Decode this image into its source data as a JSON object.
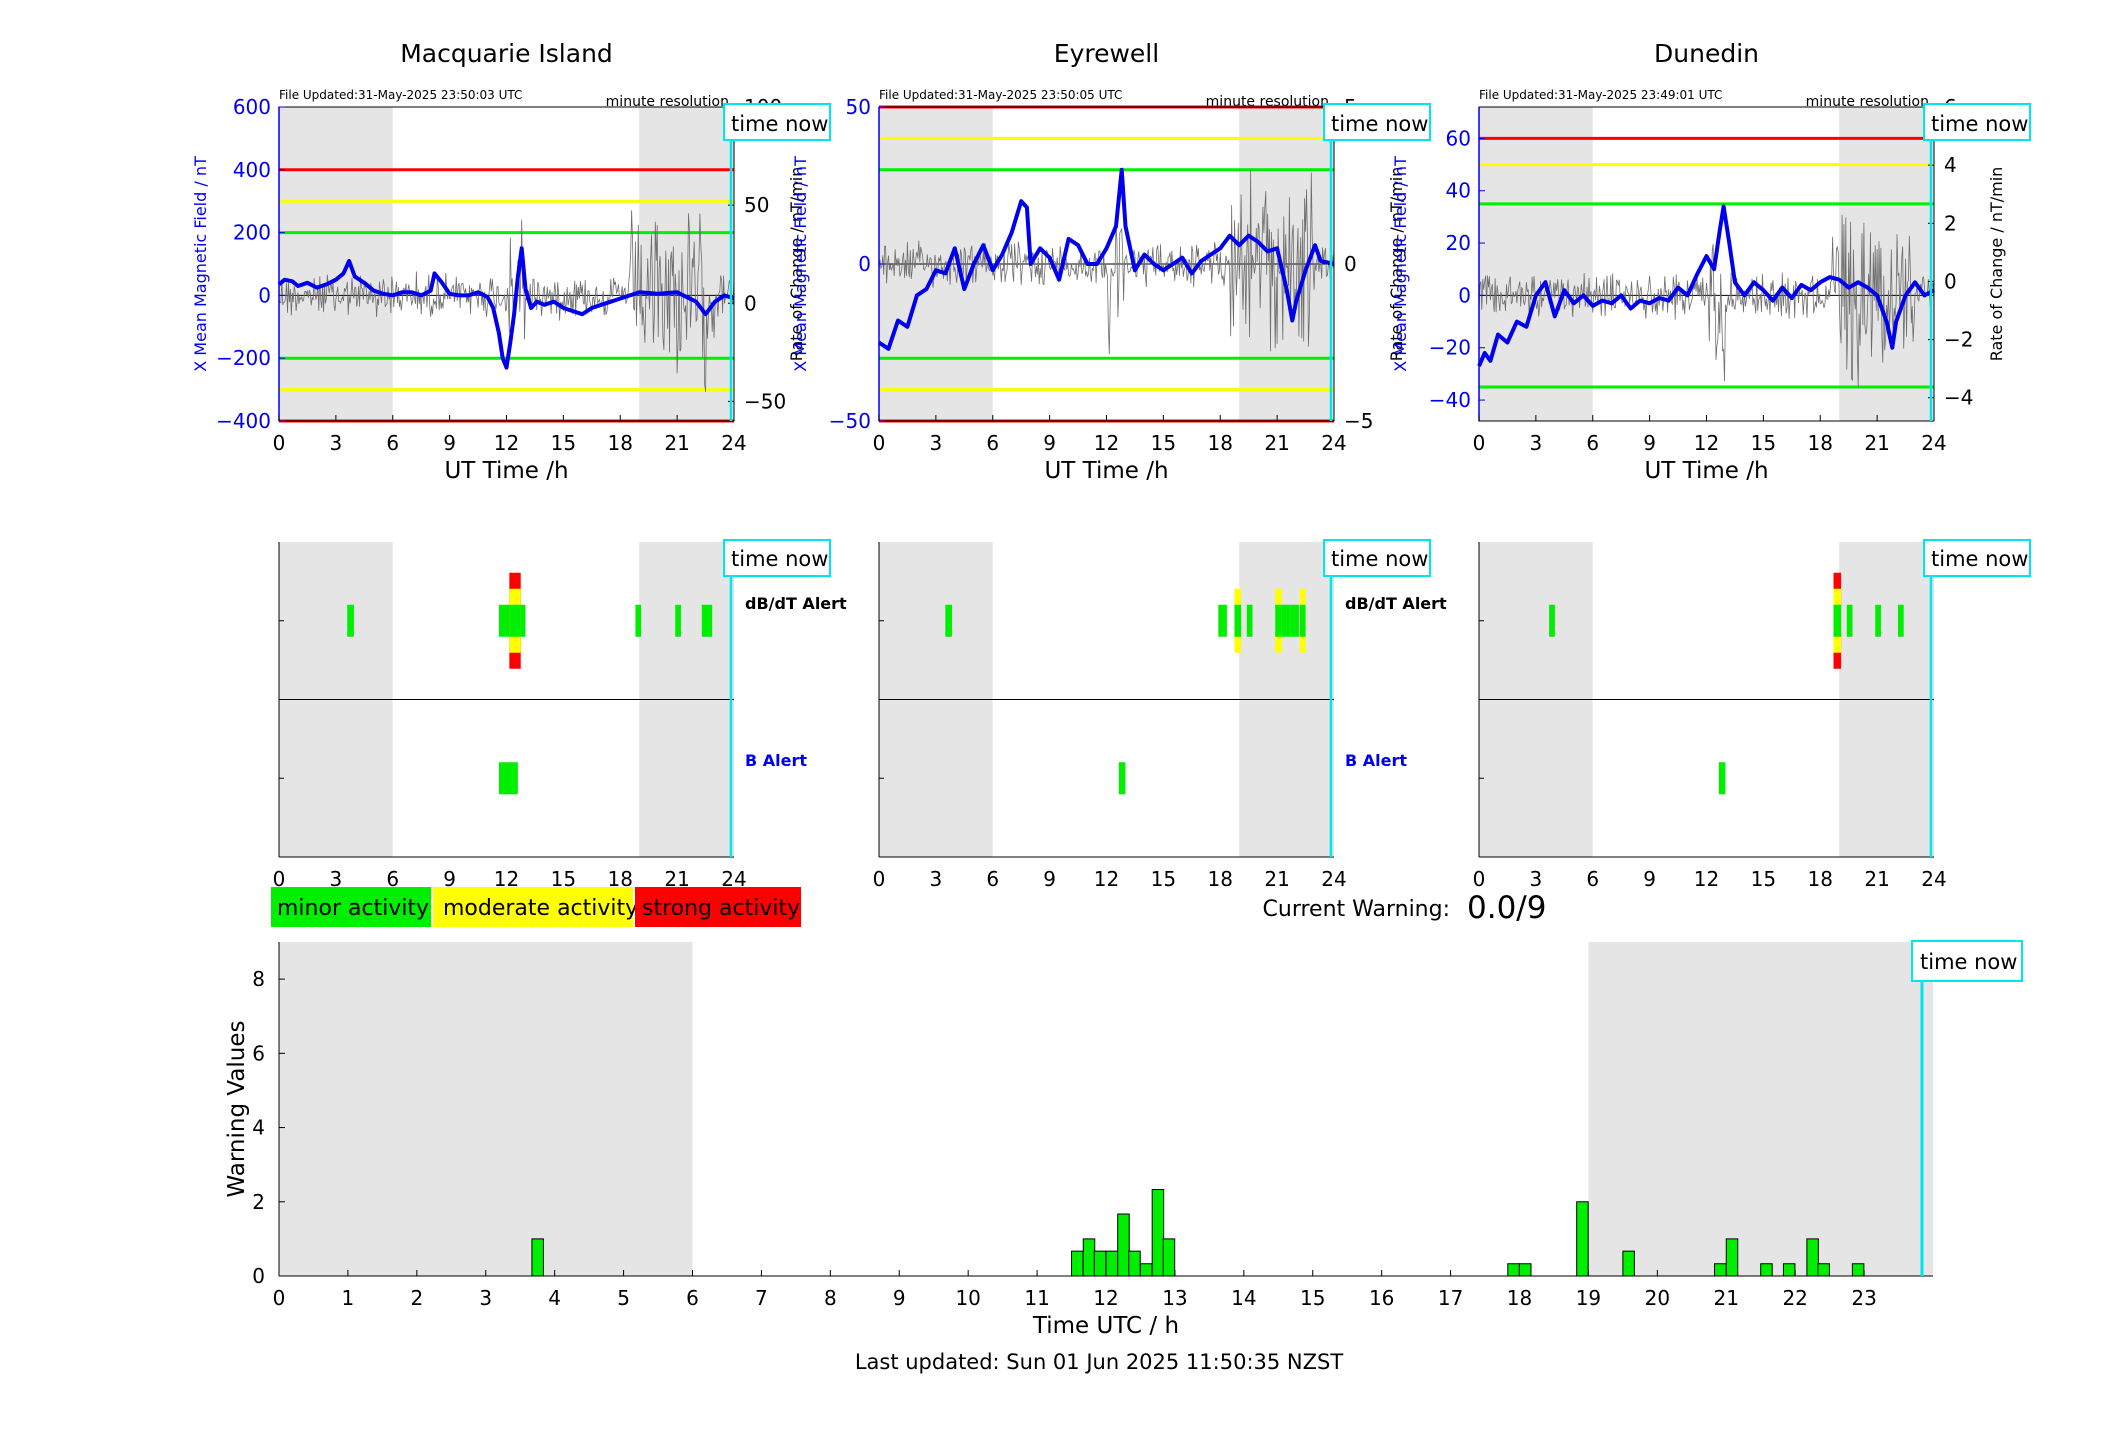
{
  "xlabel_ut": "UT Time /h",
  "minute_resolution": "minute resolution",
  "time_now_label": "time now",
  "legend": {
    "minor": "minor activity",
    "moderate": "moderate activity",
    "strong": "strong activity"
  },
  "alert_labels": {
    "dbdt": "dB/dT Alert",
    "b": "B Alert"
  },
  "current_warning": {
    "label": "Current Warning:",
    "value": "0.0/9"
  },
  "footer": "Last updated: Sun 01 Jun 2025 11:50:35 NZST",
  "colors": {
    "green": "#00ee00",
    "yellow": "#ffff00",
    "red": "#ff0000",
    "blue": "#0000ee",
    "cyan": "#00e5ee",
    "shade": "#e5e5e5"
  },
  "shaded_hours": [
    [
      0,
      6
    ],
    [
      19,
      24
    ]
  ],
  "time_now_hour": 23.84,
  "stations": [
    {
      "name": "Macquarie Island",
      "file_updated": "File Updated:31-May-2025 23:50:03 UTC",
      "left_ylabel": "X Mean Magnetic Field / nT",
      "right_ylabel": "Rate of Change / nT/min",
      "left_ylim": [
        -400,
        600
      ],
      "left_ticks": [
        -400,
        -200,
        0,
        200,
        400,
        600
      ],
      "right_ylim": [
        -60,
        100
      ],
      "right_ticks": [
        -50,
        0,
        50,
        100
      ],
      "thresholds": {
        "red": 400,
        "yellow": 300,
        "green": 200
      },
      "x_field_curve": [
        [
          0,
          35
        ],
        [
          0.3,
          50
        ],
        [
          0.7,
          45
        ],
        [
          1,
          30
        ],
        [
          1.5,
          40
        ],
        [
          2,
          25
        ],
        [
          2.5,
          35
        ],
        [
          3,
          50
        ],
        [
          3.4,
          70
        ],
        [
          3.7,
          110
        ],
        [
          4,
          60
        ],
        [
          4.5,
          40
        ],
        [
          5,
          15
        ],
        [
          5.5,
          5
        ],
        [
          6,
          0
        ],
        [
          6.5,
          10
        ],
        [
          7,
          10
        ],
        [
          7.5,
          0
        ],
        [
          8,
          15
        ],
        [
          8.2,
          70
        ],
        [
          8.6,
          40
        ],
        [
          9,
          5
        ],
        [
          9.5,
          0
        ],
        [
          10,
          0
        ],
        [
          10.5,
          10
        ],
        [
          11,
          -5
        ],
        [
          11.3,
          -40
        ],
        [
          11.6,
          -120
        ],
        [
          11.8,
          -200
        ],
        [
          12,
          -230
        ],
        [
          12.2,
          -150
        ],
        [
          12.4,
          -60
        ],
        [
          12.6,
          60
        ],
        [
          12.8,
          150
        ],
        [
          13,
          20
        ],
        [
          13.3,
          -40
        ],
        [
          13.6,
          -20
        ],
        [
          14,
          -30
        ],
        [
          14.5,
          -20
        ],
        [
          15,
          -40
        ],
        [
          15.5,
          -50
        ],
        [
          16,
          -60
        ],
        [
          16.5,
          -40
        ],
        [
          17,
          -30
        ],
        [
          17.5,
          -20
        ],
        [
          18,
          -10
        ],
        [
          19,
          10
        ],
        [
          20,
          5
        ],
        [
          21,
          10
        ],
        [
          22,
          -20
        ],
        [
          22.5,
          -60
        ],
        [
          23,
          -20
        ],
        [
          23.5,
          0
        ],
        [
          24,
          -10
        ]
      ],
      "dbdt_alerts": [
        {
          "start": 3.6,
          "end": 3.95,
          "level": 1
        },
        {
          "start": 11.6,
          "end": 12.15,
          "level": 1
        },
        {
          "start": 12.15,
          "end": 12.45,
          "level": 3
        },
        {
          "start": 12.45,
          "end": 12.75,
          "level": 3
        },
        {
          "start": 12.75,
          "end": 13.0,
          "level": 1
        },
        {
          "start": 18.8,
          "end": 19.1,
          "level": 1
        },
        {
          "start": 20.9,
          "end": 21.2,
          "level": 1
        },
        {
          "start": 22.3,
          "end": 22.6,
          "level": 1
        },
        {
          "start": 22.6,
          "end": 22.85,
          "level": 1
        }
      ],
      "b_alerts": [
        {
          "start": 11.6,
          "end": 12.6,
          "level": 1
        }
      ]
    },
    {
      "name": "Eyrewell",
      "file_updated": "File Updated:31-May-2025 23:50:05 UTC",
      "left_ylabel": "X Mean Magnetic Field / nT",
      "right_ylabel": "Rate of Change / nT/min",
      "left_ylim": [
        -50,
        50
      ],
      "left_ticks": [
        -50,
        0,
        50
      ],
      "right_ylim": [
        -5,
        5
      ],
      "right_ticks": [
        -5,
        0,
        5
      ],
      "thresholds": {
        "red": 50,
        "yellow": 40,
        "green": 30
      },
      "x_field_curve": [
        [
          0,
          -25
        ],
        [
          0.5,
          -27
        ],
        [
          1,
          -18
        ],
        [
          1.5,
          -20
        ],
        [
          2,
          -10
        ],
        [
          2.5,
          -8
        ],
        [
          3,
          -2
        ],
        [
          3.5,
          -3
        ],
        [
          4,
          5
        ],
        [
          4.5,
          -8
        ],
        [
          5,
          0
        ],
        [
          5.5,
          6
        ],
        [
          6,
          -2
        ],
        [
          6.5,
          3
        ],
        [
          7,
          10
        ],
        [
          7.5,
          20
        ],
        [
          7.8,
          18
        ],
        [
          8,
          0
        ],
        [
          8.5,
          5
        ],
        [
          9,
          2
        ],
        [
          9.5,
          -5
        ],
        [
          10,
          8
        ],
        [
          10.5,
          6
        ],
        [
          11,
          0
        ],
        [
          11.5,
          0
        ],
        [
          12,
          5
        ],
        [
          12.5,
          12
        ],
        [
          12.8,
          30
        ],
        [
          13,
          12
        ],
        [
          13.5,
          -2
        ],
        [
          14,
          3
        ],
        [
          14.5,
          0
        ],
        [
          15,
          -2
        ],
        [
          15.5,
          0
        ],
        [
          16,
          2
        ],
        [
          16.5,
          -3
        ],
        [
          17,
          1
        ],
        [
          17.5,
          3
        ],
        [
          18,
          5
        ],
        [
          18.5,
          9
        ],
        [
          19,
          6
        ],
        [
          19.5,
          9
        ],
        [
          20,
          7
        ],
        [
          20.5,
          4
        ],
        [
          21,
          5
        ],
        [
          21.5,
          -8
        ],
        [
          21.8,
          -18
        ],
        [
          22,
          -12
        ],
        [
          22.5,
          -2
        ],
        [
          23,
          6
        ],
        [
          23.3,
          1
        ],
        [
          24,
          0
        ]
      ],
      "dbdt_alerts": [
        {
          "start": 3.5,
          "end": 3.85,
          "level": 1
        },
        {
          "start": 17.9,
          "end": 18.35,
          "level": 1
        },
        {
          "start": 18.75,
          "end": 19.1,
          "level": 2
        },
        {
          "start": 19.4,
          "end": 19.7,
          "level": 1
        },
        {
          "start": 20.9,
          "end": 21.25,
          "level": 2
        },
        {
          "start": 21.25,
          "end": 21.7,
          "level": 1
        },
        {
          "start": 21.7,
          "end": 22.15,
          "level": 1
        },
        {
          "start": 22.2,
          "end": 22.5,
          "level": 2
        }
      ],
      "b_alerts": [
        {
          "start": 12.65,
          "end": 13.0,
          "level": 1
        }
      ]
    },
    {
      "name": "Dunedin",
      "file_updated": "File Updated:31-May-2025 23:49:01 UTC",
      "left_ylabel": "X Mean Magnetic Field / nT",
      "right_ylabel": "Rate of Change / nT/min",
      "left_ylim": [
        -48,
        72
      ],
      "left_ticks": [
        -40,
        -20,
        0,
        20,
        40,
        60
      ],
      "right_ylim": [
        -4.8,
        6.0
      ],
      "right_ticks": [
        -4,
        -2,
        0,
        2,
        4,
        6
      ],
      "thresholds": {
        "red": 60,
        "yellow": 50,
        "green": 35
      },
      "x_field_curve": [
        [
          0,
          -27
        ],
        [
          0.3,
          -22
        ],
        [
          0.6,
          -25
        ],
        [
          1,
          -15
        ],
        [
          1.5,
          -18
        ],
        [
          2,
          -10
        ],
        [
          2.5,
          -12
        ],
        [
          3,
          0
        ],
        [
          3.5,
          5
        ],
        [
          4,
          -8
        ],
        [
          4.5,
          2
        ],
        [
          5,
          -3
        ],
        [
          5.5,
          0
        ],
        [
          6,
          -4
        ],
        [
          6.5,
          -2
        ],
        [
          7,
          -3
        ],
        [
          7.5,
          0
        ],
        [
          8,
          -5
        ],
        [
          8.5,
          -2
        ],
        [
          9,
          -3
        ],
        [
          9.5,
          -1
        ],
        [
          10,
          -2
        ],
        [
          10.5,
          3
        ],
        [
          11,
          0
        ],
        [
          11.5,
          8
        ],
        [
          12,
          15
        ],
        [
          12.4,
          10
        ],
        [
          12.7,
          25
        ],
        [
          12.9,
          34
        ],
        [
          13.2,
          20
        ],
        [
          13.5,
          5
        ],
        [
          14,
          0
        ],
        [
          14.5,
          5
        ],
        [
          15,
          2
        ],
        [
          15.5,
          -2
        ],
        [
          16,
          3
        ],
        [
          16.5,
          -1
        ],
        [
          17,
          4
        ],
        [
          17.5,
          2
        ],
        [
          18,
          5
        ],
        [
          18.5,
          7
        ],
        [
          19,
          6
        ],
        [
          19.5,
          3
        ],
        [
          20,
          5
        ],
        [
          20.5,
          3
        ],
        [
          21,
          0
        ],
        [
          21.5,
          -10
        ],
        [
          21.8,
          -20
        ],
        [
          22,
          -10
        ],
        [
          22.5,
          0
        ],
        [
          23,
          5
        ],
        [
          23.5,
          0
        ],
        [
          24,
          2
        ]
      ],
      "dbdt_alerts": [
        {
          "start": 3.7,
          "end": 4.0,
          "level": 1
        },
        {
          "start": 18.7,
          "end": 19.1,
          "level": 3
        },
        {
          "start": 19.4,
          "end": 19.7,
          "level": 1
        },
        {
          "start": 20.9,
          "end": 21.2,
          "level": 1
        },
        {
          "start": 22.1,
          "end": 22.4,
          "level": 1
        }
      ],
      "b_alerts": [
        {
          "start": 12.65,
          "end": 13.0,
          "level": 1
        }
      ]
    }
  ],
  "chart_data": {
    "type": "bar",
    "title": "",
    "xlabel": "Time UTC / h",
    "ylabel": "Warning Values",
    "xlim": [
      0,
      24
    ],
    "ylim": [
      0,
      9
    ],
    "yticks": [
      0,
      2,
      4,
      6,
      8
    ],
    "xticks": [
      0,
      1,
      2,
      3,
      4,
      5,
      6,
      7,
      8,
      9,
      10,
      11,
      12,
      13,
      14,
      15,
      16,
      17,
      18,
      19,
      20,
      21,
      22,
      23
    ],
    "bin_width_h": 0.1667,
    "bar_start_h": [
      3.67,
      11.5,
      11.67,
      11.83,
      12.0,
      12.17,
      12.33,
      12.5,
      12.67,
      12.83,
      17.83,
      18.0,
      18.83,
      19.5,
      20.83,
      21.0,
      21.5,
      21.83,
      22.17,
      22.33,
      22.83
    ],
    "values": [
      1.0,
      0.67,
      1.0,
      0.67,
      0.67,
      1.67,
      0.67,
      0.33,
      2.33,
      1.0,
      0.33,
      0.33,
      2.0,
      0.67,
      0.33,
      1.0,
      0.33,
      0.33,
      1.0,
      0.33,
      0.33
    ]
  }
}
